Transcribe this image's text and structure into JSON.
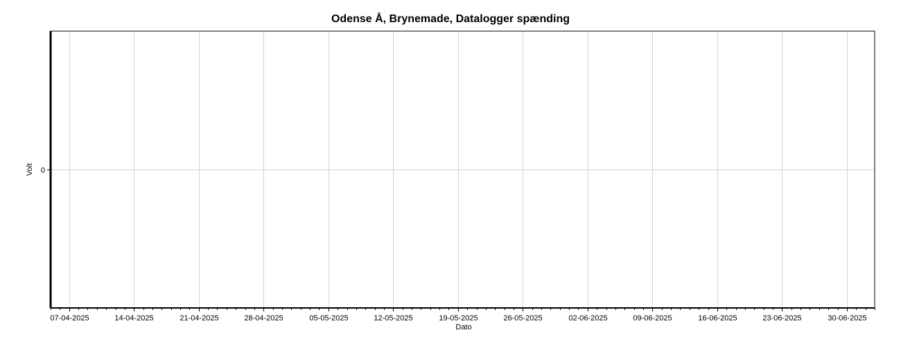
{
  "chart_data": {
    "type": "line",
    "title": "Odense Å, Brynemade, Datalogger spænding",
    "xlabel": "Dato",
    "ylabel": "Volt",
    "x_tick_labels": [
      "07-04-2025",
      "14-04-2025",
      "21-04-2025",
      "28-04-2025",
      "05-05-2025",
      "12-05-2025",
      "19-05-2025",
      "26-05-2025",
      "02-06-2025",
      "09-06-2025",
      "16-06-2025",
      "23-06-2025",
      "30-06-2025"
    ],
    "y_tick_labels": [
      "0"
    ],
    "xlim": [
      "2025-04-05",
      "2025-07-03"
    ],
    "y_ticks": [
      0
    ],
    "grid": true,
    "series": []
  }
}
